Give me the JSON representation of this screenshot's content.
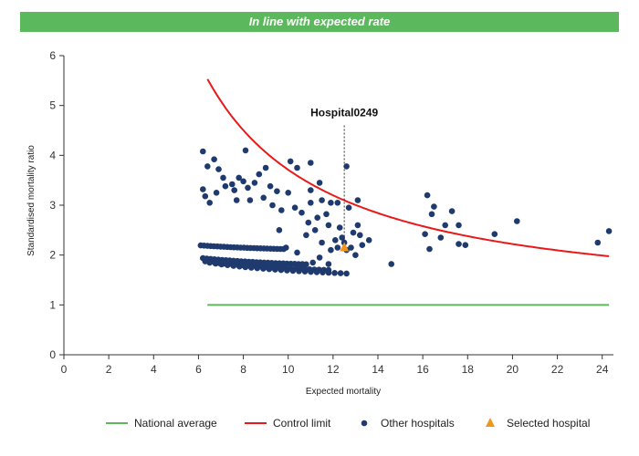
{
  "banner": {
    "text": "In line with expected rate",
    "color": "#5cb85c"
  },
  "chart_data": {
    "type": "scatter",
    "xlabel": "Expected mortality",
    "ylabel": "Standardised mortality ratio",
    "xlim": [
      0,
      24.5
    ],
    "ylim": [
      0,
      6
    ],
    "x_ticks": [
      0,
      2,
      4,
      6,
      8,
      10,
      12,
      14,
      16,
      18,
      20,
      22,
      24
    ],
    "y_ticks": [
      0,
      1,
      2,
      3,
      4,
      5,
      6
    ],
    "grid": false,
    "legend_position": "bottom",
    "legend": [
      {
        "label": "National average",
        "color": "#5cb85c",
        "kind": "line"
      },
      {
        "label": "Control limit",
        "color": "#e8191a",
        "kind": "line"
      },
      {
        "label": "Other hospitals",
        "color": "#1f3a6e",
        "kind": "dot"
      },
      {
        "label": "Selected hospital",
        "color": "#f0961e",
        "kind": "triangle"
      }
    ],
    "national_average": {
      "y": 1.0,
      "x_range": [
        6.4,
        24.3
      ]
    },
    "control_limit": {
      "x_range": [
        6.4,
        24.3
      ],
      "k": 38.3,
      "p": 1.15,
      "baseline": 1.0,
      "note": ""
    },
    "selected": {
      "name": "Hospital0249",
      "x": 12.5,
      "y": 2.15
    },
    "other_points": [
      [
        6.2,
        4.08
      ],
      [
        6.4,
        3.78
      ],
      [
        6.7,
        3.92
      ],
      [
        6.9,
        3.72
      ],
      [
        7.1,
        3.55
      ],
      [
        6.2,
        3.32
      ],
      [
        6.3,
        3.18
      ],
      [
        6.5,
        3.05
      ],
      [
        6.8,
        3.25
      ],
      [
        7.2,
        3.38
      ],
      [
        7.5,
        3.42
      ],
      [
        7.8,
        3.55
      ],
      [
        7.6,
        3.3
      ],
      [
        8.0,
        3.48
      ],
      [
        8.2,
        3.35
      ],
      [
        8.5,
        3.45
      ],
      [
        8.7,
        3.62
      ],
      [
        8.1,
        4.1
      ],
      [
        9.0,
        3.75
      ],
      [
        9.2,
        3.38
      ],
      [
        9.5,
        3.28
      ],
      [
        10.0,
        3.25
      ],
      [
        10.1,
        3.88
      ],
      [
        10.4,
        3.75
      ],
      [
        11.0,
        3.85
      ],
      [
        11.0,
        3.3
      ],
      [
        11.4,
        3.45
      ],
      [
        11.0,
        3.05
      ],
      [
        11.5,
        3.1
      ],
      [
        11.9,
        3.05
      ],
      [
        12.2,
        3.05
      ],
      [
        12.6,
        3.78
      ],
      [
        12.7,
        2.95
      ],
      [
        13.1,
        3.1
      ],
      [
        13.1,
        2.6
      ],
      [
        12.9,
        2.45
      ],
      [
        12.5,
        2.25
      ],
      [
        12.4,
        2.35
      ],
      [
        12.1,
        2.3
      ],
      [
        12.2,
        2.15
      ],
      [
        12.8,
        2.15
      ],
      [
        13.0,
        2.0
      ],
      [
        13.3,
        2.2
      ],
      [
        13.6,
        2.3
      ],
      [
        14.6,
        1.82
      ],
      [
        16.2,
        3.2
      ],
      [
        16.4,
        2.82
      ],
      [
        16.5,
        2.97
      ],
      [
        17.0,
        2.6
      ],
      [
        17.3,
        2.88
      ],
      [
        17.6,
        2.6
      ],
      [
        16.1,
        2.42
      ],
      [
        16.3,
        2.12
      ],
      [
        16.8,
        2.35
      ],
      [
        17.6,
        2.22
      ],
      [
        17.9,
        2.2
      ],
      [
        19.2,
        2.42
      ],
      [
        20.2,
        2.68
      ],
      [
        23.8,
        2.25
      ],
      [
        24.3,
        2.48
      ],
      [
        10.3,
        2.95
      ],
      [
        10.6,
        2.85
      ],
      [
        10.9,
        2.65
      ],
      [
        11.3,
        2.75
      ],
      [
        11.7,
        2.82
      ],
      [
        11.8,
        2.6
      ],
      [
        11.2,
        2.5
      ],
      [
        10.8,
        2.4
      ],
      [
        11.5,
        2.25
      ],
      [
        11.9,
        2.1
      ],
      [
        11.8,
        1.82
      ],
      [
        11.1,
        1.85
      ],
      [
        11.4,
        1.95
      ],
      [
        10.4,
        2.05
      ],
      [
        9.9,
        2.15
      ],
      [
        9.6,
        2.5
      ],
      [
        8.3,
        3.1
      ],
      [
        8.9,
        3.15
      ],
      [
        9.3,
        3.0
      ],
      [
        9.7,
        2.9
      ],
      [
        7.7,
        3.1
      ],
      [
        12.3,
        2.55
      ],
      [
        12.6,
        2.1
      ],
      [
        13.2,
        2.4
      ]
    ],
    "bands": [
      {
        "A": 2.0,
        "B": 1.18,
        "x_start": 6.1,
        "x_end": 9.8,
        "n": 26
      },
      {
        "A": 1.65,
        "B": 1.78,
        "x_start": 6.2,
        "x_end": 10.8,
        "n": 28
      },
      {
        "A": 1.5,
        "B": 2.35,
        "x_start": 6.3,
        "x_end": 11.8,
        "n": 27
      },
      {
        "A": 1.4,
        "B": 2.9,
        "x_start": 6.5,
        "x_end": 12.6,
        "n": 24
      }
    ]
  }
}
